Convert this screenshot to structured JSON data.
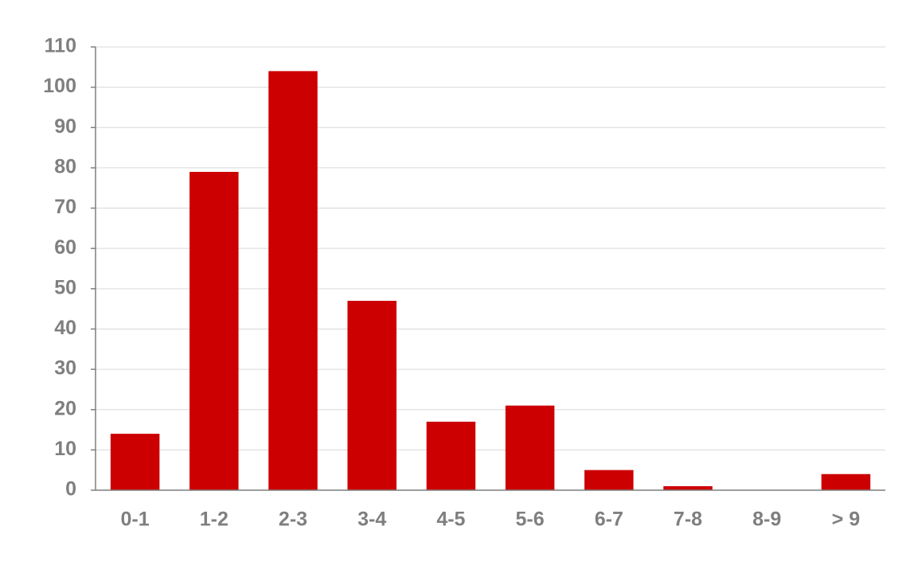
{
  "chart_data": {
    "type": "bar",
    "categories": [
      "0-1",
      "1-2",
      "2-3",
      "3-4",
      "4-5",
      "5-6",
      "6-7",
      "7-8",
      "8-9",
      "> 9"
    ],
    "values": [
      14,
      79,
      104,
      47,
      17,
      21,
      5,
      1,
      0,
      4
    ],
    "color": "#cc0000",
    "ylim": [
      0,
      110
    ],
    "yticks": [
      0,
      10,
      20,
      30,
      40,
      50,
      60,
      70,
      80,
      90,
      100,
      110
    ],
    "grid": true
  }
}
